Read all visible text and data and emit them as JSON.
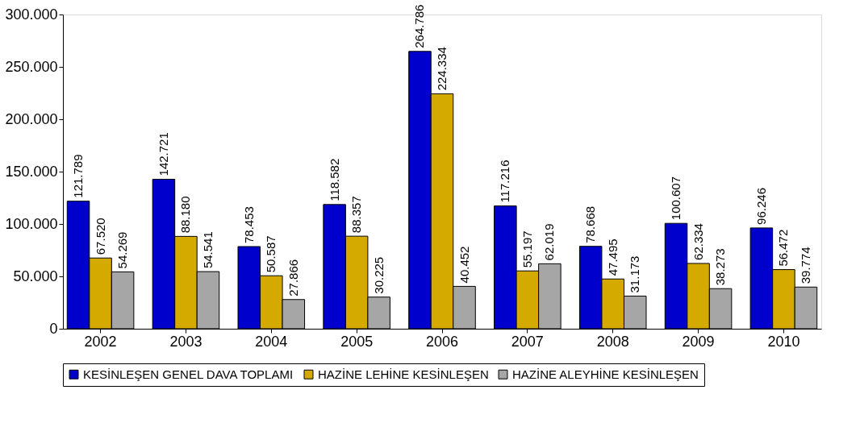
{
  "chart_data": {
    "type": "bar",
    "categories": [
      "2002",
      "2003",
      "2004",
      "2005",
      "2006",
      "2007",
      "2008",
      "2009",
      "2010"
    ],
    "series": [
      {
        "name": "KESİNLEŞEN GENEL DAVA TOPLAMI",
        "color": "#0000cc",
        "values": [
          121789,
          142721,
          78453,
          118582,
          264786,
          117216,
          78668,
          100607,
          96246
        ],
        "value_labels": [
          "121.789",
          "142.721",
          "78.453",
          "118.582",
          "264.786",
          "117.216",
          "78.668",
          "100.607",
          "96.246"
        ]
      },
      {
        "name": "HAZİNE LEHİNE KESİNLEŞEN",
        "color": "#d4aa00",
        "values": [
          67520,
          88180,
          50587,
          88357,
          224334,
          55197,
          47495,
          62334,
          56472
        ],
        "value_labels": [
          "67.520",
          "88.180",
          "50.587",
          "88.357",
          "224.334",
          "55.197",
          "47.495",
          "62.334",
          "56.472"
        ]
      },
      {
        "name": "HAZİNE ALEYHİNE KESİNLEŞEN",
        "color": "#a6a6a6",
        "values": [
          54269,
          54541,
          27866,
          30225,
          40452,
          62019,
          31173,
          38273,
          39774
        ],
        "value_labels": [
          "54.269",
          "54.541",
          "27.866",
          "30.225",
          "40.452",
          "62.019",
          "31.173",
          "38.273",
          "39.774"
        ]
      }
    ],
    "ylim": [
      0,
      300000
    ],
    "yticks": [
      {
        "value": 0,
        "label": "0"
      },
      {
        "value": 50000,
        "label": "50.000"
      },
      {
        "value": 100000,
        "label": "100.000"
      },
      {
        "value": 150000,
        "label": "150.000"
      },
      {
        "value": 200000,
        "label": "200.000"
      },
      {
        "value": 250000,
        "label": "250.000"
      },
      {
        "value": 300000,
        "label": "300.000"
      }
    ],
    "grid": false,
    "legend": "bottom"
  }
}
